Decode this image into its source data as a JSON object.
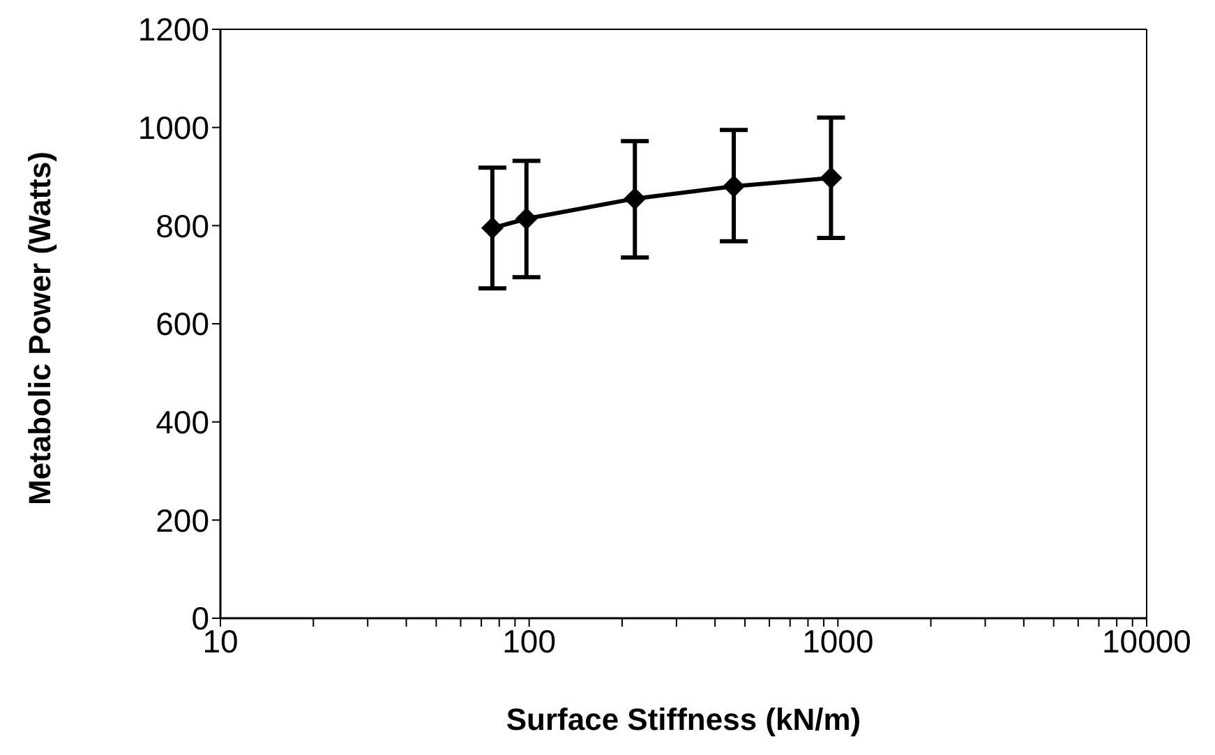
{
  "chart_data": {
    "type": "line",
    "xlabel": "Surface Stiffness (kN/m)",
    "ylabel": "Metabolic Power (Watts)",
    "x": [
      76,
      98,
      220,
      460,
      950
    ],
    "series": [
      {
        "color": "#000000",
        "values": [
          795,
          814,
          855,
          880,
          897
        ],
        "errors": [
          [
            672,
            918
          ],
          [
            695,
            932
          ],
          [
            735,
            972
          ],
          [
            768,
            995
          ],
          [
            775,
            1020
          ]
        ]
      }
    ],
    "log": "x",
    "xlim": [
      10,
      10000
    ],
    "ylim": [
      0,
      1200
    ],
    "xticks": [
      10,
      {
        "value": 20,
        "label": null
      },
      {
        "value": 30,
        "label": null
      },
      {
        "value": 40,
        "label": null
      },
      {
        "value": 50,
        "label": null
      },
      {
        "value": 60,
        "label": null
      },
      {
        "value": 70,
        "label": null
      },
      {
        "value": 80,
        "label": null
      },
      {
        "value": 90,
        "label": null
      },
      100,
      {
        "value": 200,
        "label": null
      },
      {
        "value": 300,
        "label": null
      },
      {
        "value": 400,
        "label": null
      },
      {
        "value": 500,
        "label": null
      },
      {
        "value": 600,
        "label": null
      },
      {
        "value": 700,
        "label": null
      },
      {
        "value": 800,
        "label": null
      },
      {
        "value": 900,
        "label": null
      },
      1000,
      {
        "value": 2000,
        "label": null
      },
      {
        "value": 3000,
        "label": null
      },
      {
        "value": 4000,
        "label": null
      },
      {
        "value": 5000,
        "label": null
      },
      {
        "value": 6000,
        "label": null
      },
      {
        "value": 7000,
        "label": null
      },
      {
        "value": 8000,
        "label": null
      },
      {
        "value": 9000,
        "label": null
      },
      10000
    ],
    "yticks": [
      0,
      200,
      400,
      600,
      800,
      1000,
      1200
    ],
    "marker": "diamond",
    "line_style": "solid",
    "grid": false,
    "legend": false
  }
}
